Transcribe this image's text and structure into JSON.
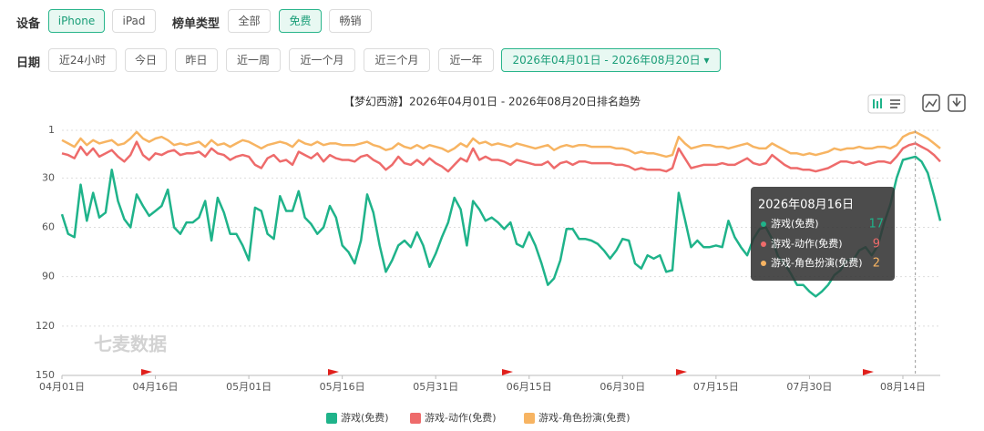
{
  "filters": {
    "device_label": "设备",
    "device_options": [
      "iPhone",
      "iPad"
    ],
    "list_label": "榜单类型",
    "list_options": [
      "全部",
      "免费",
      "畅销"
    ],
    "date_label": "日期",
    "date_options": [
      "近24小时",
      "今日",
      "昨日",
      "近一周",
      "近一个月",
      "近三个月",
      "近一年"
    ],
    "date_range": "2026年04月01日 - 2026年08月20日 ▾"
  },
  "chart_data": {
    "type": "line",
    "title": "【梦幻西游】2026年04月01日 - 2026年08月20日排名趋势",
    "watermark": "七麦数据",
    "tooltip_title": "2026年08月16日",
    "categories": [
      "04月01日",
      null,
      null,
      null,
      null,
      null,
      null,
      null,
      null,
      null,
      null,
      null,
      null,
      null,
      null,
      "04月16日",
      null,
      null,
      null,
      null,
      null,
      null,
      null,
      null,
      null,
      null,
      null,
      null,
      null,
      null,
      "05月01日",
      null,
      null,
      null,
      null,
      null,
      null,
      null,
      null,
      null,
      null,
      null,
      null,
      null,
      null,
      "05月16日",
      null,
      null,
      null,
      null,
      null,
      null,
      null,
      null,
      null,
      null,
      null,
      null,
      null,
      null,
      "05月31日",
      null,
      null,
      null,
      null,
      null,
      null,
      null,
      null,
      null,
      null,
      null,
      null,
      null,
      null,
      "06月15日",
      null,
      null,
      null,
      null,
      null,
      null,
      null,
      null,
      null,
      null,
      null,
      null,
      null,
      null,
      "06月30日",
      null,
      null,
      null,
      null,
      null,
      null,
      null,
      null,
      null,
      null,
      null,
      null,
      null,
      null,
      "07月15日",
      null,
      null,
      null,
      null,
      null,
      null,
      null,
      null,
      null,
      null,
      null,
      null,
      null,
      null,
      "07月30日",
      null,
      null,
      null,
      null,
      null,
      null,
      null,
      null,
      null,
      null,
      null,
      null,
      null,
      null,
      "08月14日",
      null,
      null,
      null,
      null,
      null,
      null
    ],
    "series": [
      {
        "name": "游戏(免费)",
        "color": "#1fb38a",
        "values": [
          52,
          64,
          66,
          34,
          56,
          39,
          54,
          51,
          25,
          44,
          55,
          60,
          40,
          47,
          53,
          50,
          47,
          37,
          60,
          64,
          57,
          57,
          54,
          44,
          68,
          42,
          51,
          64,
          64,
          71,
          80,
          48,
          50,
          64,
          67,
          41,
          50,
          50,
          38,
          54,
          58,
          64,
          60,
          47,
          54,
          71,
          75,
          82,
          68,
          40,
          51,
          71,
          87,
          80,
          71,
          68,
          72,
          63,
          71,
          84,
          76,
          66,
          57,
          42,
          49,
          71,
          44,
          49,
          56,
          54,
          57,
          61,
          57,
          70,
          72,
          63,
          71,
          82,
          95,
          91,
          80,
          61,
          61,
          67,
          67,
          68,
          70,
          74,
          79,
          74,
          67,
          68,
          82,
          85,
          77,
          79,
          77,
          87,
          86,
          39,
          55,
          72,
          68,
          72,
          72,
          71,
          72,
          56,
          66,
          72,
          77,
          67,
          61,
          60,
          67,
          78,
          82,
          88,
          95,
          95,
          99,
          102,
          99,
          95,
          89,
          86,
          80,
          80,
          74,
          72,
          77,
          71,
          57,
          46,
          30,
          19,
          18,
          17,
          20,
          27,
          41,
          56
        ]
      },
      {
        "name": "游戏-动作(免费)",
        "color": "#ee6b6b",
        "values": [
          15,
          16,
          18,
          11,
          16,
          12,
          17,
          15,
          13,
          17,
          20,
          16,
          8,
          16,
          19,
          15,
          16,
          14,
          13,
          16,
          15,
          15,
          14,
          17,
          12,
          15,
          16,
          19,
          17,
          16,
          17,
          22,
          24,
          18,
          16,
          20,
          19,
          22,
          14,
          16,
          18,
          15,
          20,
          16,
          18,
          19,
          19,
          20,
          17,
          16,
          19,
          21,
          25,
          22,
          17,
          21,
          22,
          19,
          22,
          18,
          21,
          23,
          26,
          22,
          18,
          20,
          12,
          19,
          17,
          19,
          19,
          20,
          22,
          19,
          20,
          21,
          22,
          22,
          20,
          24,
          21,
          20,
          22,
          20,
          20,
          21,
          21,
          21,
          21,
          22,
          22,
          23,
          25,
          24,
          25,
          25,
          25,
          26,
          24,
          12,
          18,
          24,
          23,
          22,
          22,
          22,
          21,
          22,
          22,
          20,
          18,
          21,
          22,
          21,
          16,
          19,
          22,
          24,
          24,
          25,
          25,
          26,
          25,
          24,
          22,
          20,
          20,
          21,
          20,
          22,
          21,
          20,
          20,
          21,
          17,
          12,
          10,
          9,
          11,
          13,
          16,
          20
        ]
      },
      {
        "name": "游戏-角色扮演(免费)",
        "color": "#f7b462",
        "values": [
          7,
          9,
          11,
          6,
          10,
          7,
          9,
          8,
          7,
          10,
          9,
          6,
          2,
          6,
          8,
          6,
          5,
          7,
          10,
          9,
          10,
          9,
          8,
          11,
          7,
          10,
          9,
          11,
          9,
          7,
          8,
          10,
          12,
          10,
          9,
          8,
          9,
          11,
          7,
          9,
          10,
          8,
          10,
          9,
          9,
          10,
          10,
          10,
          9,
          8,
          10,
          11,
          13,
          12,
          9,
          11,
          12,
          10,
          12,
          10,
          11,
          12,
          14,
          12,
          9,
          11,
          6,
          9,
          8,
          10,
          9,
          10,
          11,
          9,
          10,
          11,
          12,
          11,
          10,
          13,
          11,
          10,
          11,
          10,
          10,
          11,
          11,
          11,
          11,
          12,
          12,
          13,
          15,
          14,
          15,
          15,
          16,
          17,
          16,
          5,
          9,
          12,
          11,
          10,
          10,
          11,
          11,
          12,
          11,
          10,
          9,
          11,
          12,
          12,
          9,
          11,
          13,
          15,
          15,
          16,
          15,
          16,
          15,
          14,
          12,
          13,
          12,
          12,
          11,
          12,
          12,
          11,
          11,
          12,
          10,
          5,
          3,
          2,
          4,
          6,
          9,
          12
        ]
      }
    ],
    "ylim": [
      150,
      1
    ],
    "yticks": [
      1,
      30,
      60,
      90,
      120,
      150
    ],
    "grid": true,
    "legend": "bottom"
  }
}
